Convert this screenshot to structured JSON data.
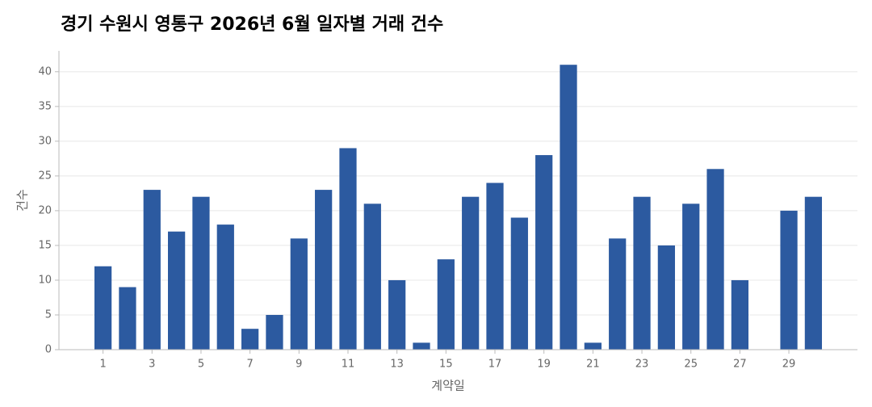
{
  "chart_data": {
    "type": "bar",
    "title": "경기 수원시 영통구 2026년 6월 일자별 거래 건수",
    "x_label": "계약일",
    "y_label": "건수",
    "x": [
      1,
      2,
      3,
      4,
      5,
      6,
      7,
      8,
      9,
      10,
      11,
      12,
      13,
      14,
      15,
      16,
      17,
      18,
      19,
      20,
      21,
      22,
      23,
      24,
      25,
      26,
      27,
      29,
      30
    ],
    "values": [
      12,
      9,
      23,
      17,
      22,
      18,
      3,
      5,
      16,
      23,
      29,
      21,
      10,
      1,
      13,
      22,
      24,
      19,
      28,
      41,
      1,
      16,
      22,
      15,
      21,
      26,
      10,
      20,
      22
    ],
    "color": "#2c5aa0",
    "xlim": [
      -0.8,
      31.8
    ],
    "xticks": [
      1,
      3,
      5,
      7,
      9,
      11,
      13,
      15,
      17,
      19,
      21,
      23,
      25,
      27,
      29
    ],
    "ylim": [
      0,
      43
    ],
    "yticks": [
      0,
      5,
      10,
      15,
      20,
      25,
      30,
      35,
      40
    ],
    "grid": true
  }
}
